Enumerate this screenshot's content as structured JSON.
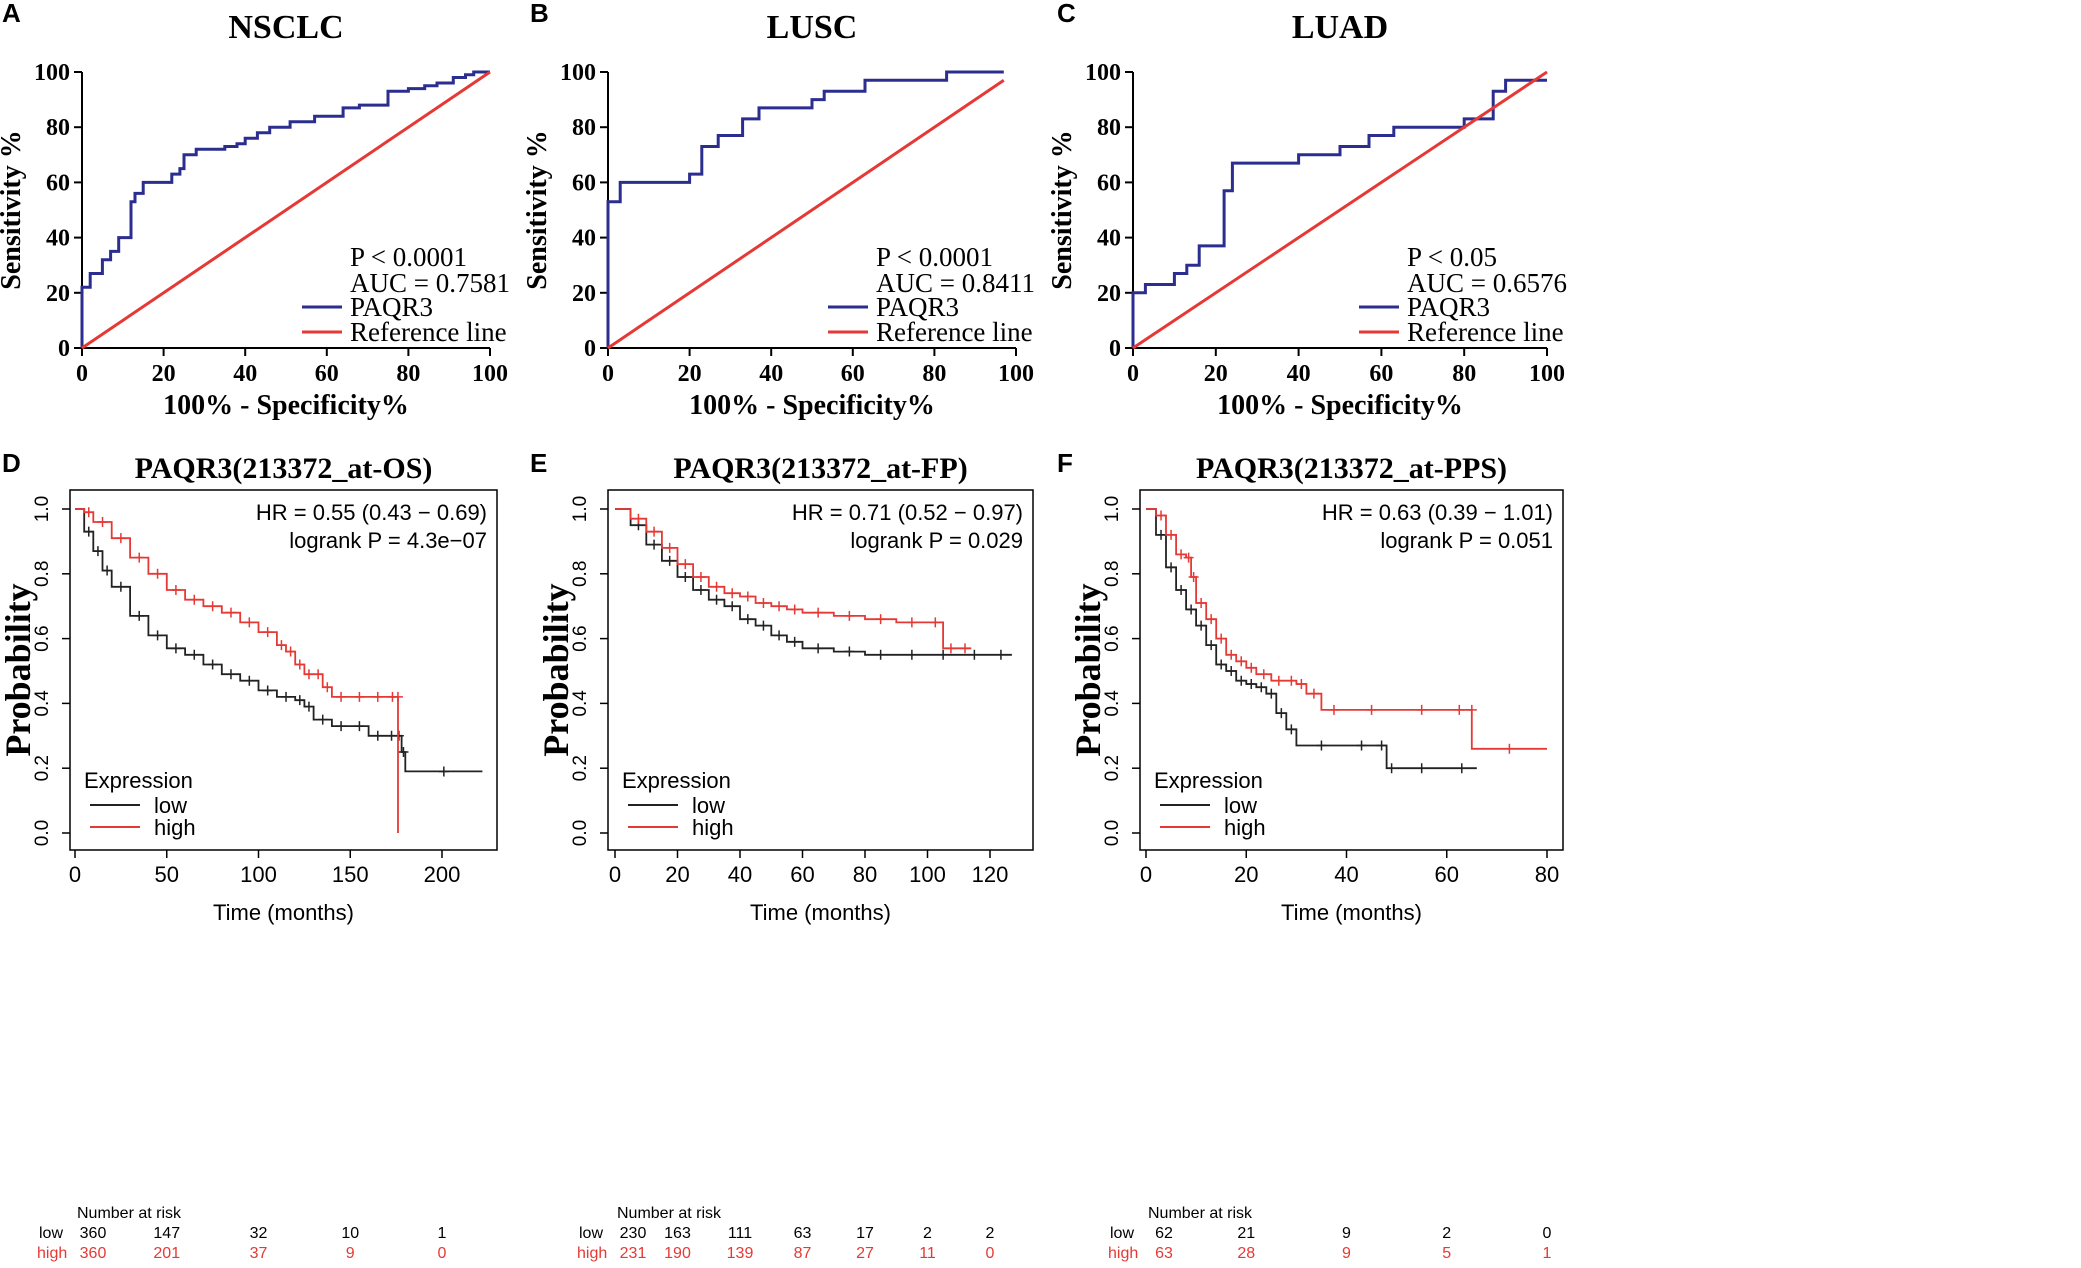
{
  "colors": {
    "roc": "#2B2E8F",
    "reference": "#E53935",
    "low": "#222222",
    "high": "#E53935",
    "axis": "#000000"
  },
  "chart_data": [
    {
      "id": "roc_nsclc",
      "panel_letter": "A",
      "type": "line",
      "title": "NSCLC",
      "xlabel": "100% - Specificity%",
      "ylabel": "Sensitivity %",
      "xlim": [
        0,
        100
      ],
      "ylim": [
        0,
        100
      ],
      "xticks": [
        "0",
        "20",
        "40",
        "60",
        "80",
        "100"
      ],
      "yticks": [
        "0",
        "20",
        "40",
        "60",
        "80",
        "100"
      ],
      "stats": [
        "P < 0.0001",
        "AUC = 0.7581"
      ],
      "legend": {
        "placement": "bottom-right",
        "entries": [
          "PAQR3",
          "Reference line"
        ]
      },
      "series": [
        {
          "name": "PAQR3",
          "x": [
            0,
            0,
            2,
            2,
            5,
            5,
            7,
            7,
            9,
            9,
            12,
            12,
            13,
            13,
            15,
            15,
            22,
            22,
            24,
            24,
            25,
            25,
            28,
            28,
            35,
            35,
            38,
            38,
            40,
            40,
            43,
            43,
            46,
            46,
            51,
            51,
            57,
            57,
            64,
            64,
            68,
            68,
            75,
            75,
            80,
            80,
            84,
            84,
            87,
            87,
            91,
            91,
            94,
            94,
            96,
            96,
            100
          ],
          "y": [
            0,
            22,
            22,
            27,
            27,
            32,
            32,
            35,
            35,
            40,
            40,
            53,
            53,
            56,
            56,
            60,
            60,
            63,
            63,
            65,
            65,
            70,
            70,
            72,
            72,
            73,
            73,
            74,
            74,
            76,
            76,
            78,
            78,
            80,
            80,
            82,
            82,
            84,
            84,
            87,
            87,
            88,
            88,
            93,
            93,
            94,
            94,
            95,
            95,
            96,
            96,
            98,
            98,
            99,
            99,
            100,
            100
          ]
        },
        {
          "name": "Reference line",
          "x": [
            0,
            100
          ],
          "y": [
            0,
            100
          ]
        }
      ]
    },
    {
      "id": "roc_lusc",
      "panel_letter": "B",
      "type": "line",
      "title": "LUSC",
      "xlabel": "100% - Specificity%",
      "ylabel": "Sensitivity %",
      "xlim": [
        0,
        100
      ],
      "ylim": [
        0,
        100
      ],
      "xticks": [
        "0",
        "20",
        "40",
        "60",
        "80",
        "100"
      ],
      "yticks": [
        "0",
        "20",
        "40",
        "60",
        "80",
        "100"
      ],
      "stats": [
        "P < 0.0001",
        "AUC = 0.8411"
      ],
      "legend": {
        "placement": "bottom-right",
        "entries": [
          "PAQR3",
          "Reference line"
        ]
      },
      "series": [
        {
          "name": "PAQR3",
          "x": [
            0,
            0,
            3,
            3,
            20,
            20,
            23,
            23,
            27,
            27,
            33,
            33,
            37,
            37,
            50,
            50,
            53,
            53,
            63,
            63,
            83,
            83,
            97
          ],
          "y": [
            0,
            53,
            53,
            60,
            60,
            63,
            63,
            73,
            73,
            77,
            77,
            83,
            83,
            87,
            87,
            90,
            90,
            93,
            93,
            97,
            97,
            100,
            100
          ]
        },
        {
          "name": "Reference line",
          "x": [
            0,
            97
          ],
          "y": [
            0,
            97
          ]
        }
      ]
    },
    {
      "id": "roc_luad",
      "panel_letter": "C",
      "type": "line",
      "title": "LUAD",
      "xlabel": "100% - Specificity%",
      "ylabel": "Sensitivity %",
      "xlim": [
        0,
        100
      ],
      "ylim": [
        0,
        100
      ],
      "xticks": [
        "0",
        "20",
        "40",
        "60",
        "80",
        "100"
      ],
      "yticks": [
        "0",
        "20",
        "40",
        "60",
        "80",
        "100"
      ],
      "stats": [
        "P < 0.05",
        "AUC = 0.6576"
      ],
      "legend": {
        "placement": "bottom-right",
        "entries": [
          "PAQR3",
          "Reference line"
        ]
      },
      "series": [
        {
          "name": "PAQR3",
          "x": [
            0,
            0,
            3,
            3,
            10,
            10,
            13,
            13,
            16,
            16,
            22,
            22,
            24,
            24,
            27,
            27,
            40,
            40,
            50,
            50,
            57,
            57,
            63,
            63,
            80,
            80,
            87,
            87,
            90,
            90,
            93,
            93,
            100
          ],
          "y": [
            0,
            20,
            20,
            23,
            23,
            27,
            27,
            30,
            30,
            37,
            37,
            57,
            57,
            67,
            67,
            67,
            67,
            70,
            70,
            73,
            73,
            77,
            77,
            80,
            80,
            83,
            83,
            93,
            93,
            97,
            97,
            97,
            97
          ]
        },
        {
          "name": "Reference line",
          "x": [
            0,
            100
          ],
          "y": [
            0,
            100
          ]
        }
      ]
    },
    {
      "id": "km_os",
      "panel_letter": "D",
      "type": "line",
      "title": "PAQR3(213372_at-OS)",
      "xlabel": "Time (months)",
      "ylabel": "Probability",
      "xlim": [
        0,
        230
      ],
      "ylim": [
        0,
        1
      ],
      "xticks": [
        "0",
        "50",
        "100",
        "150",
        "200"
      ],
      "yticks": [
        "0.0",
        "0.2",
        "0.4",
        "0.6",
        "0.8",
        "1.0"
      ],
      "stats": [
        "HR = 0.55 (0.43 − 0.69)",
        "logrank P = 4.3e−07"
      ],
      "legend": {
        "placement": "bottom-left",
        "title": "Expression",
        "entries": [
          "low",
          "high"
        ]
      },
      "risk_table": {
        "title": "Number at risk",
        "times": [
          0,
          50,
          100,
          150,
          200
        ],
        "low": [
          "360",
          "147",
          "32",
          "10",
          "1"
        ],
        "high": [
          "360",
          "201",
          "37",
          "9",
          "0"
        ]
      },
      "series": [
        {
          "name": "low",
          "x": [
            0,
            5,
            10,
            15,
            20,
            30,
            40,
            50,
            60,
            70,
            80,
            90,
            100,
            110,
            120,
            125,
            130,
            140,
            150,
            160,
            170,
            175,
            178,
            180,
            222
          ],
          "y": [
            1.0,
            0.93,
            0.87,
            0.81,
            0.76,
            0.67,
            0.61,
            0.57,
            0.55,
            0.52,
            0.49,
            0.47,
            0.44,
            0.42,
            0.41,
            0.39,
            0.35,
            0.33,
            0.33,
            0.3,
            0.3,
            0.3,
            0.25,
            0.19,
            0.19
          ]
        },
        {
          "name": "high",
          "x": [
            0,
            5,
            10,
            20,
            30,
            40,
            50,
            60,
            70,
            80,
            90,
            100,
            110,
            115,
            120,
            125,
            130,
            135,
            140,
            150,
            160,
            170,
            176,
            176
          ],
          "y": [
            1.0,
            0.99,
            0.96,
            0.91,
            0.85,
            0.8,
            0.75,
            0.72,
            0.7,
            0.68,
            0.65,
            0.62,
            0.58,
            0.56,
            0.52,
            0.49,
            0.49,
            0.45,
            0.42,
            0.42,
            0.42,
            0.42,
            0.42,
            0.0
          ]
        }
      ]
    },
    {
      "id": "km_fp",
      "panel_letter": "E",
      "type": "line",
      "title": "PAQR3(213372_at-FP)",
      "xlabel": "Time (months)",
      "ylabel": "Probability",
      "xlim": [
        0,
        130
      ],
      "ylim": [
        0,
        1
      ],
      "xticks": [
        "0",
        "20",
        "40",
        "60",
        "80",
        "100",
        "120"
      ],
      "yticks": [
        "0.0",
        "0.2",
        "0.4",
        "0.6",
        "0.8",
        "1.0"
      ],
      "stats": [
        "HR = 0.71 (0.52 − 0.97)",
        "logrank P = 0.029"
      ],
      "legend": {
        "placement": "bottom-left",
        "title": "Expression",
        "entries": [
          "low",
          "high"
        ]
      },
      "risk_table": {
        "title": "Number at risk",
        "times": [
          0,
          20,
          40,
          60,
          80,
          100,
          120
        ],
        "low": [
          "230",
          "163",
          "111",
          "63",
          "17",
          "2",
          "2"
        ],
        "high": [
          "231",
          "190",
          "139",
          "87",
          "27",
          "11",
          "0"
        ]
      },
      "series": [
        {
          "name": "low",
          "x": [
            0,
            5,
            10,
            15,
            20,
            25,
            30,
            35,
            40,
            45,
            50,
            55,
            60,
            70,
            80,
            90,
            100,
            110,
            120,
            127
          ],
          "y": [
            1.0,
            0.95,
            0.89,
            0.84,
            0.79,
            0.75,
            0.72,
            0.7,
            0.66,
            0.64,
            0.61,
            0.59,
            0.57,
            0.56,
            0.55,
            0.55,
            0.55,
            0.55,
            0.55,
            0.55
          ]
        },
        {
          "name": "high",
          "x": [
            0,
            5,
            10,
            15,
            20,
            25,
            30,
            35,
            40,
            45,
            50,
            55,
            60,
            70,
            80,
            90,
            100,
            105,
            110,
            114
          ],
          "y": [
            1.0,
            0.97,
            0.93,
            0.88,
            0.83,
            0.79,
            0.76,
            0.74,
            0.73,
            0.71,
            0.7,
            0.69,
            0.68,
            0.67,
            0.66,
            0.65,
            0.65,
            0.57,
            0.57,
            0.57
          ]
        }
      ]
    },
    {
      "id": "km_pps",
      "panel_letter": "F",
      "type": "line",
      "title": "PAQR3(213372_at-PPS)",
      "xlabel": "Time (months)",
      "ylabel": "Probability",
      "xlim": [
        0,
        80
      ],
      "ylim": [
        0,
        1
      ],
      "xticks": [
        "0",
        "20",
        "40",
        "60",
        "80"
      ],
      "yticks": [
        "0.0",
        "0.2",
        "0.4",
        "0.6",
        "0.8",
        "1.0"
      ],
      "stats": [
        "HR = 0.63 (0.39 − 1.01)",
        "logrank P = 0.051"
      ],
      "legend": {
        "placement": "bottom-left",
        "title": "Expression",
        "entries": [
          "low",
          "high"
        ]
      },
      "risk_table": {
        "title": "Number at risk",
        "times": [
          0,
          20,
          40,
          60,
          80
        ],
        "low": [
          "62",
          "21",
          "9",
          "2",
          "0"
        ],
        "high": [
          "63",
          "28",
          "9",
          "5",
          "1"
        ]
      },
      "series": [
        {
          "name": "low",
          "x": [
            0,
            2,
            4,
            6,
            8,
            10,
            12,
            14,
            16,
            18,
            20,
            22,
            24,
            26,
            28,
            30,
            40,
            46,
            48,
            50,
            60,
            66
          ],
          "y": [
            1.0,
            0.92,
            0.82,
            0.75,
            0.69,
            0.64,
            0.58,
            0.52,
            0.5,
            0.47,
            0.46,
            0.45,
            0.43,
            0.37,
            0.32,
            0.27,
            0.27,
            0.27,
            0.2,
            0.2,
            0.2,
            0.2
          ]
        },
        {
          "name": "high",
          "x": [
            0,
            2,
            4,
            6,
            8,
            9,
            10,
            12,
            14,
            16,
            18,
            20,
            22,
            25,
            28,
            30,
            32,
            35,
            40,
            50,
            60,
            65,
            65,
            80
          ],
          "y": [
            1.0,
            0.98,
            0.92,
            0.86,
            0.85,
            0.79,
            0.71,
            0.66,
            0.6,
            0.55,
            0.53,
            0.51,
            0.49,
            0.47,
            0.47,
            0.46,
            0.43,
            0.38,
            0.38,
            0.38,
            0.38,
            0.38,
            0.26,
            0.26
          ]
        }
      ]
    }
  ]
}
